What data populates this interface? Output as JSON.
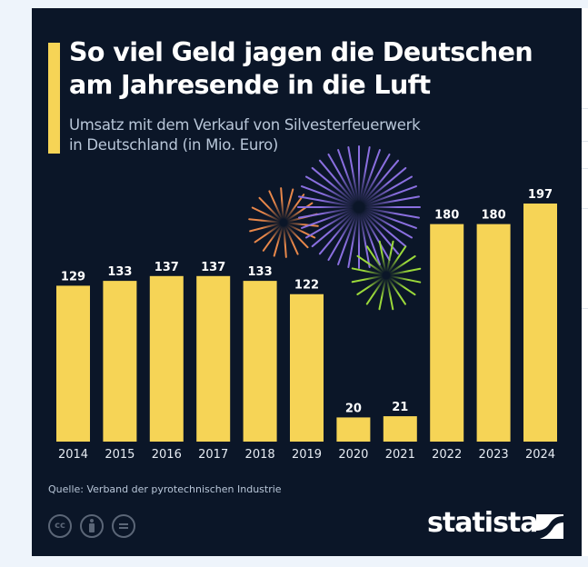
{
  "title": "So viel Geld jagen die Deutschen am Jahresende in die Luft",
  "subtitle_line1": "Umsatz mit dem Verkauf von Silvesterfeuerwerk",
  "subtitle_line2": "in Deutschland (in Mio. Euro)",
  "source": "Quelle: Verband der pyrotechnischen Industrie",
  "brand": "statista",
  "license_icons": [
    "cc-icon",
    "attribution-icon",
    "no-derivatives-icon"
  ],
  "license_cc_text": "cc",
  "colors": {
    "background": "#0b1628",
    "bar": "#f6d456",
    "accent": "#f6d456",
    "firework_orange": "#e8874a",
    "firework_purple": "#8a6fe0",
    "firework_green": "#9bd93a"
  },
  "chart_data": {
    "type": "bar",
    "title": "So viel Geld jagen die Deutschen am Jahresende in die Luft",
    "subtitle": "Umsatz mit dem Verkauf von Silvesterfeuerwerk in Deutschland (in Mio. Euro)",
    "categories": [
      "2014",
      "2015",
      "2016",
      "2017",
      "2018",
      "2019",
      "2020",
      "2021",
      "2022",
      "2023",
      "2024"
    ],
    "values": [
      129,
      133,
      137,
      137,
      133,
      122,
      20,
      21,
      180,
      180,
      197
    ],
    "ylim": [
      0,
      197
    ],
    "grid": false,
    "data_labels": true
  }
}
